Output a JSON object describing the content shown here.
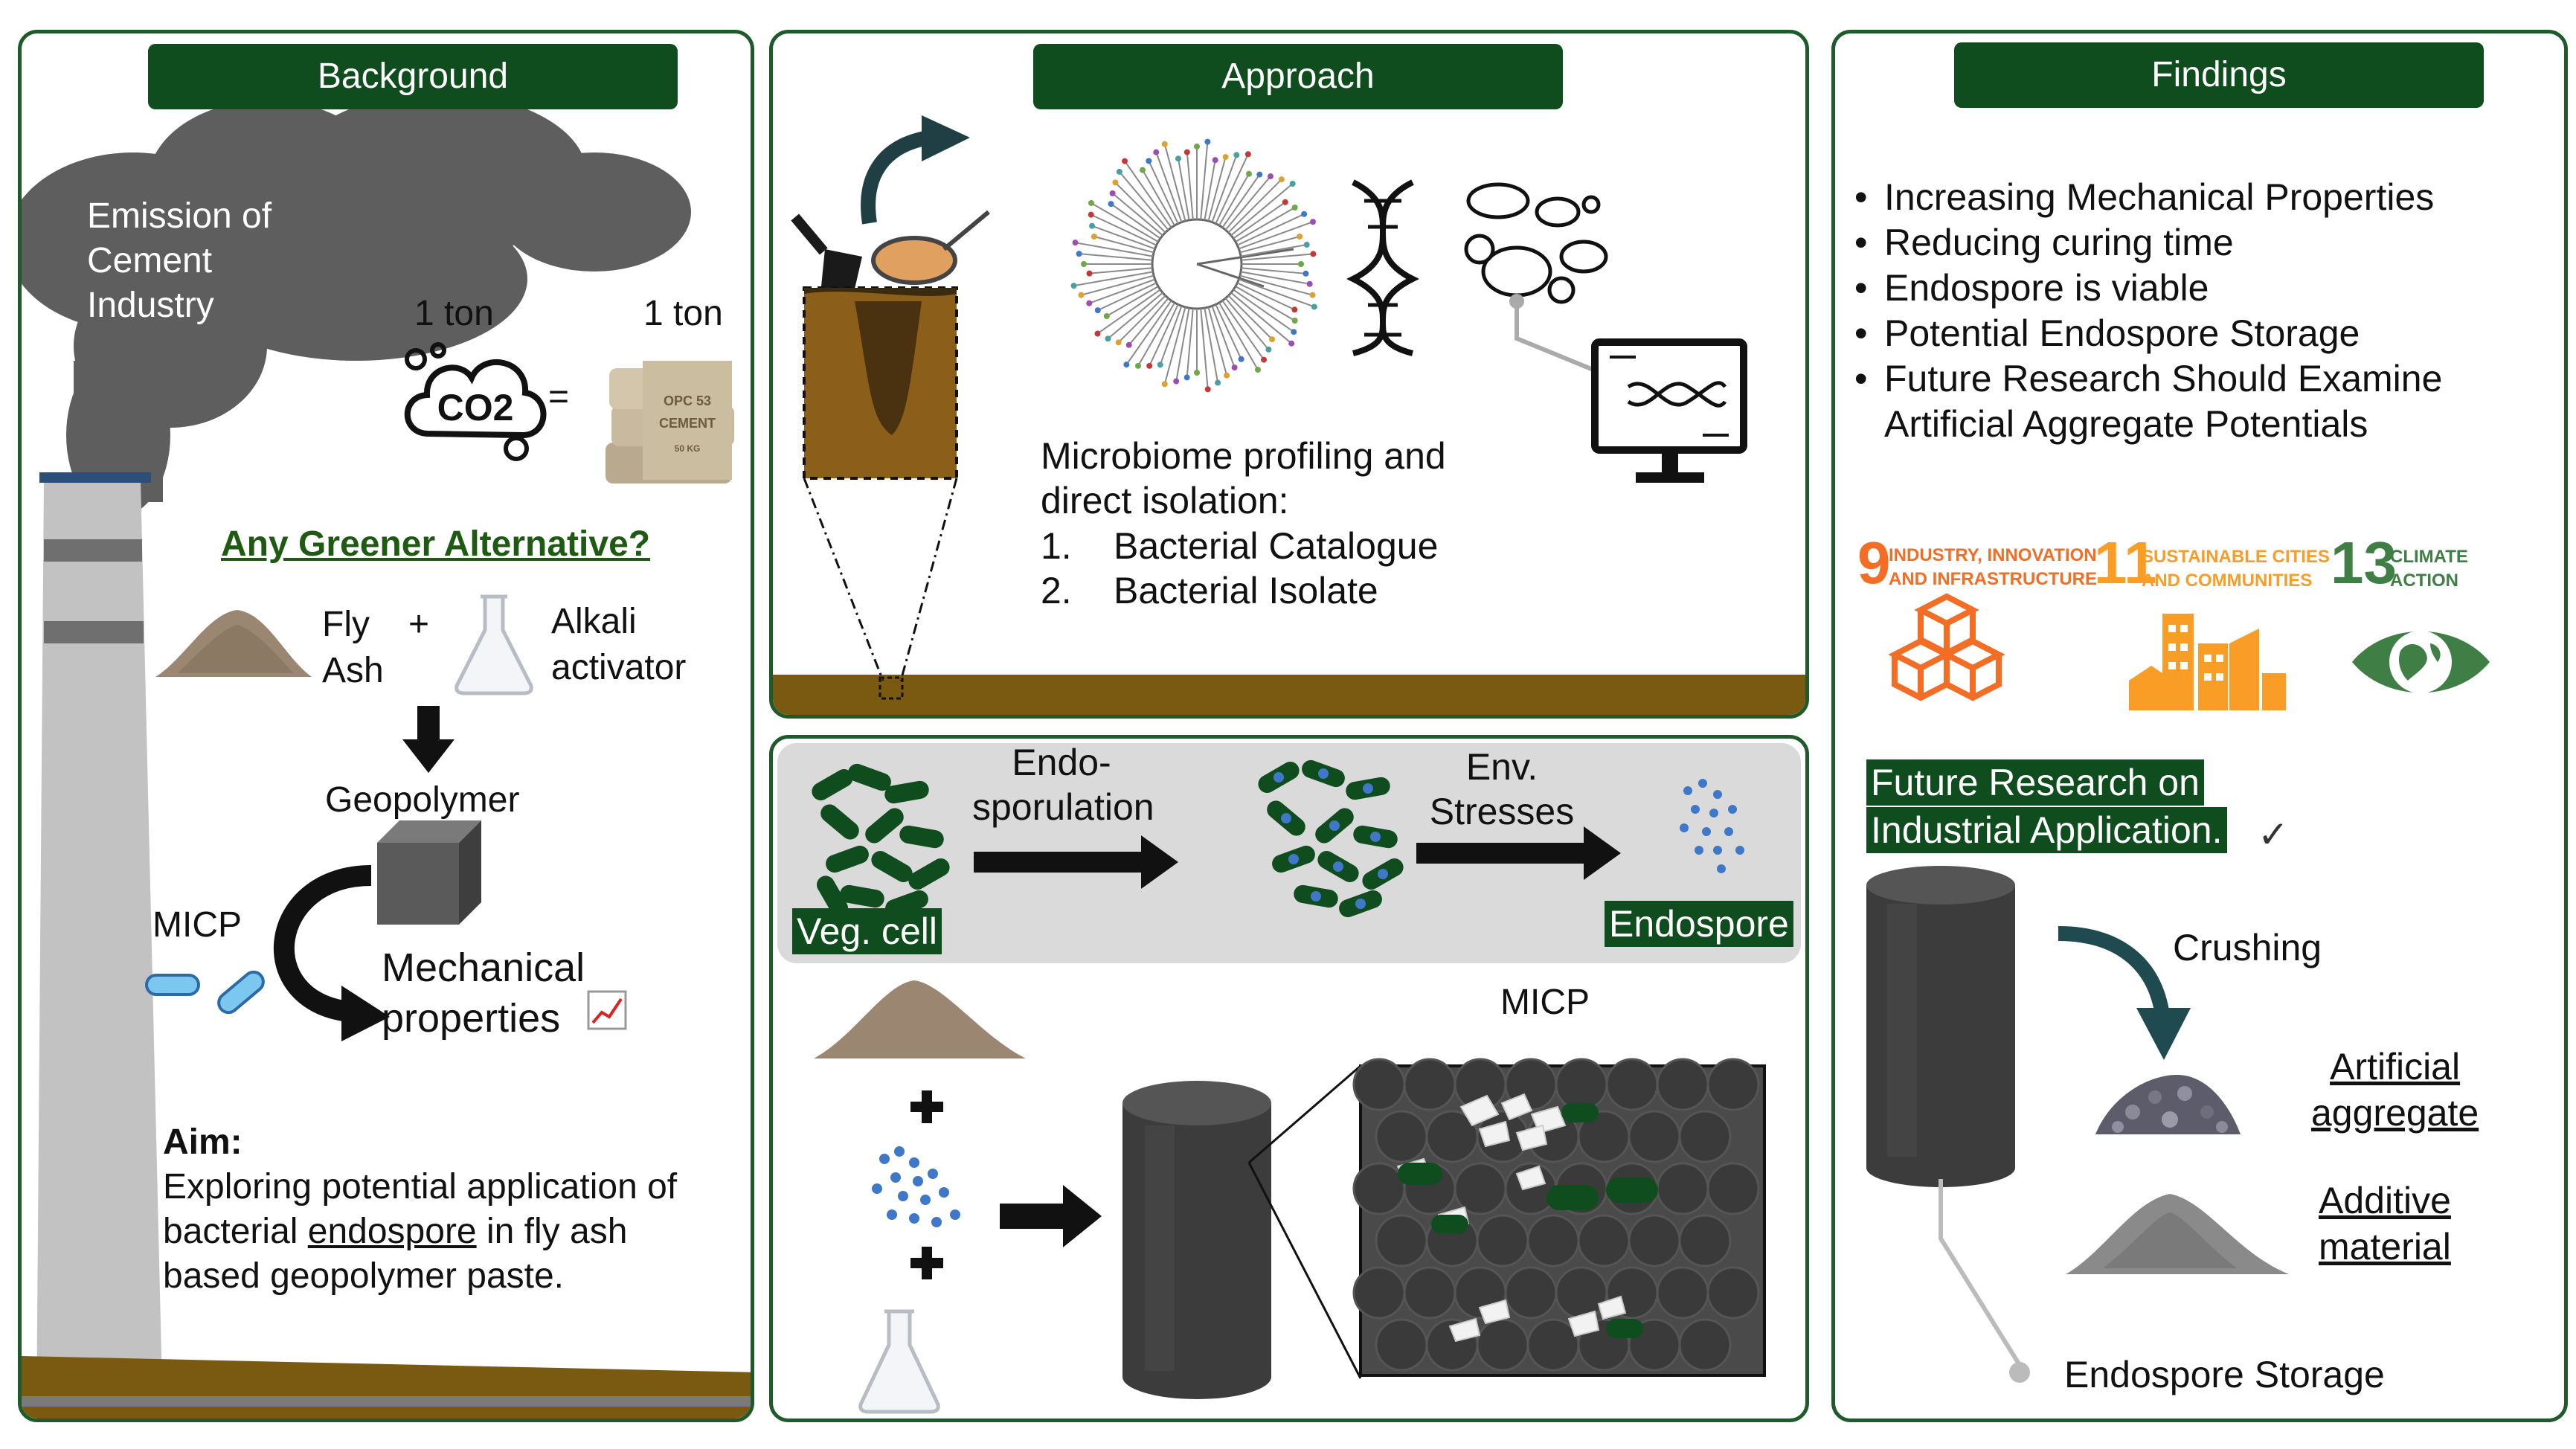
{
  "background": {
    "header": "Background",
    "emission_label": "Emission of\nCement\nIndustry",
    "ton_left": "1 ton",
    "ton_right": "1 ton",
    "co2_label": "CO2",
    "equals": "=",
    "bag_text": "OPC 53\nCEMENT\n50 KG",
    "question": "Any Greener Alternative?",
    "fly_ash": "Fly\nAsh",
    "plus": "+",
    "alkali": "Alkali\nactivator",
    "geopolymer": "Geopolymer",
    "micp": "MICP",
    "mechanical": "Mechanical\nproperties",
    "aim_title": "Aim:",
    "aim_line1": "Exploring potential application of",
    "aim_line2_pre": "bacterial ",
    "aim_line2_u": "endospore",
    "aim_line2_post": " in fly ash",
    "aim_line3": "based geopolymer paste."
  },
  "approach": {
    "header": "Approach",
    "profiling_title": "Microbiome profiling and\ndirect isolation:",
    "list": [
      {
        "num": "1.",
        "text": "Bacterial Catalogue"
      },
      {
        "num": "2.",
        "text": "Bacterial Isolate"
      }
    ],
    "step1": "Endo-\nsporulation",
    "step2": "Env.\nStresses",
    "veg_cell": "Veg. cell",
    "endospore": "Endospore",
    "micp": "MICP"
  },
  "findings": {
    "header": "Findings",
    "bullets": [
      "Increasing Mechanical Properties",
      "Reducing curing time",
      "Endospore is viable",
      "Potential Endospore Storage",
      "Future Research Should Examine\nArtificial Aggregate Potentials"
    ],
    "sdgs": [
      {
        "num": "9",
        "text": "INDUSTRY, INNOVATION\nAND INFRASTRUCTURE",
        "color": "#f36d25"
      },
      {
        "num": "11",
        "text": "SUSTAINABLE CITIES\nAND COMMUNITIES",
        "color": "#f99d26"
      },
      {
        "num": "13",
        "text": "CLIMATE\nACTION",
        "color": "#3f7e44"
      }
    ],
    "future_tag_line1": "Future Research on",
    "future_tag_line2": "Industrial Application.",
    "check": "✓",
    "crushing": "Crushing",
    "artificial": "Artificial\naggregate",
    "additive": "Additive\nmaterial",
    "storage": "Endospore Storage"
  },
  "colors": {
    "frame": "#1e5a2a",
    "header_bg": "#0f4d1e",
    "soil": "#7a5a10",
    "smoke": "#5c5c5c",
    "spore": "#3f78c8"
  }
}
